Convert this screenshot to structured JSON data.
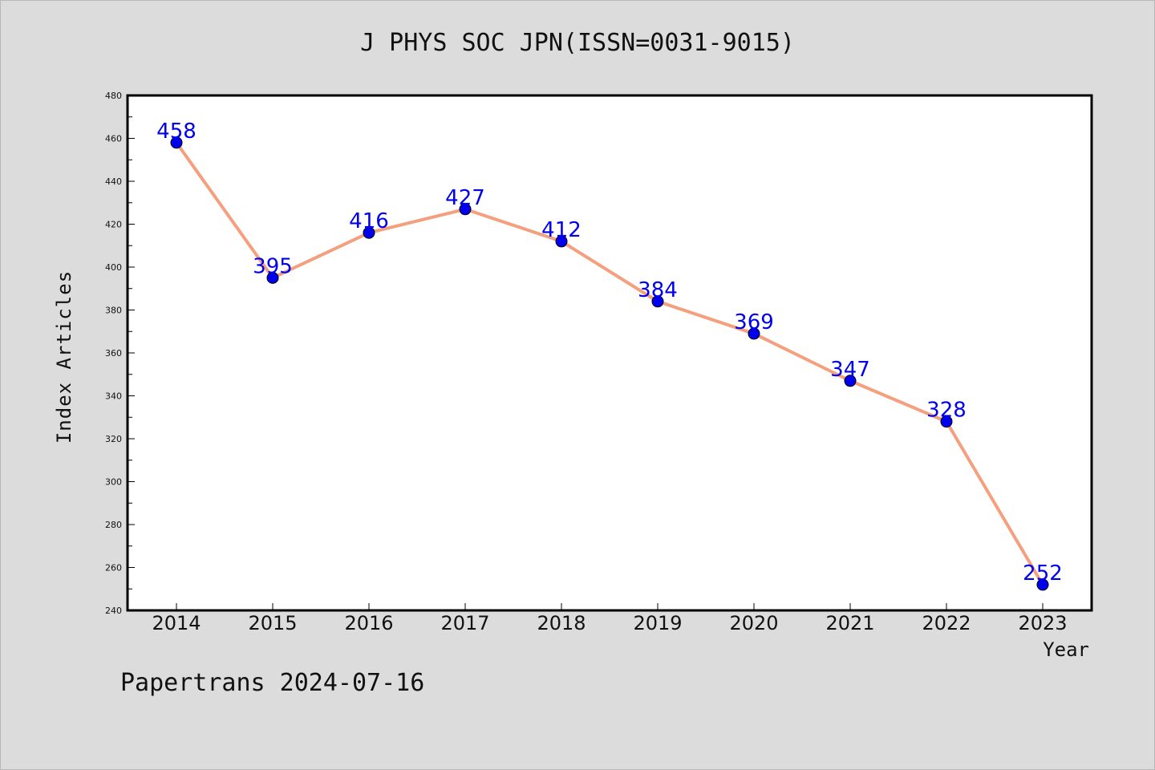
{
  "chart_data": {
    "type": "line",
    "title": "J PHYS SOC JPN(ISSN=0031-9015)",
    "xlabel": "Year",
    "ylabel": "Index Articles",
    "categories": [
      "2014",
      "2015",
      "2016",
      "2017",
      "2018",
      "2019",
      "2020",
      "2021",
      "2022",
      "2023"
    ],
    "values": [
      458,
      395,
      416,
      427,
      412,
      384,
      369,
      347,
      328,
      252
    ],
    "ylim": [
      240,
      480
    ],
    "yticks": [
      240,
      260,
      280,
      300,
      320,
      340,
      360,
      380,
      400,
      420,
      440,
      460,
      480
    ],
    "grid": false,
    "line_color": "#f4a07e",
    "marker_color": "#0000ee",
    "label_color": "#0000ee"
  },
  "footer": "Papertrans 2024-07-16"
}
